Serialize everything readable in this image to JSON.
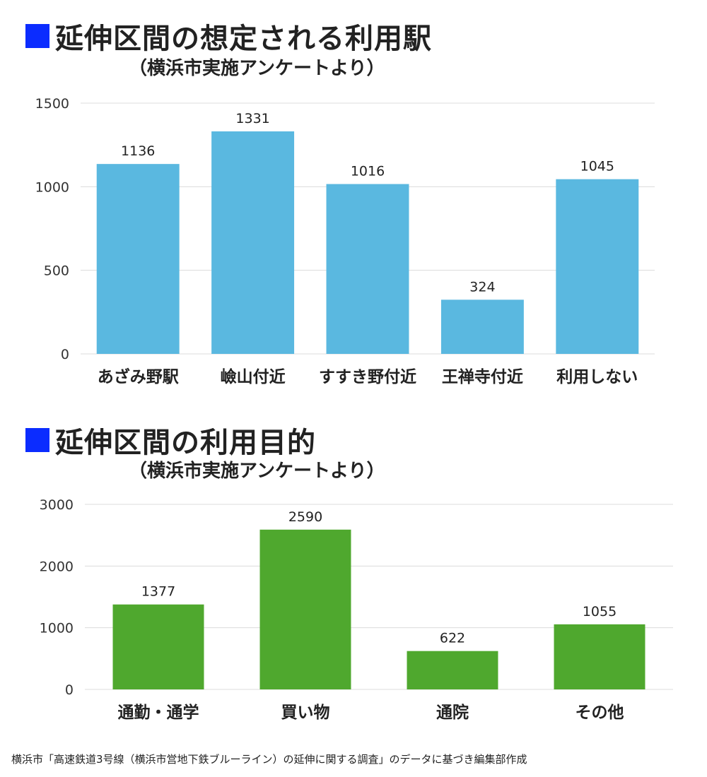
{
  "sections": [
    {
      "title": "延伸区間の想定される利用駅",
      "subtitle": "（横浜市実施アンケートより）"
    },
    {
      "title": "延伸区間の利用目的",
      "subtitle": "（横浜市実施アンケートより）"
    }
  ],
  "colors": {
    "heading_square": "#0b2cff",
    "chart1_bar": "#5ab8e0",
    "chart2_bar": "#4fa82e"
  },
  "chart_data": [
    {
      "type": "bar",
      "title": "延伸区間の想定される利用駅",
      "subtitle": "（横浜市実施アンケートより）",
      "categories": [
        "あざみ野駅",
        "嶮山付近",
        "すすき野付近",
        "王禅寺付近",
        "利用しない"
      ],
      "values": [
        1136,
        1331,
        1016,
        324,
        1045
      ],
      "yticks": [
        0,
        500,
        1000,
        1500
      ],
      "ylim": [
        0,
        1500
      ],
      "grid": true
    },
    {
      "type": "bar",
      "title": "延伸区間の利用目的",
      "subtitle": "（横浜市実施アンケートより）",
      "categories": [
        "通勤・通学",
        "買い物",
        "通院",
        "その他"
      ],
      "values": [
        1377,
        2590,
        622,
        1055
      ],
      "yticks": [
        0,
        1000,
        2000,
        3000
      ],
      "ylim": [
        0,
        3000
      ],
      "grid": true
    }
  ],
  "source_note": "横浜市「高速鉄道3号線（横浜市営地下鉄ブルーライン）の延伸に関する調査」のデータに基づき編集部作成"
}
